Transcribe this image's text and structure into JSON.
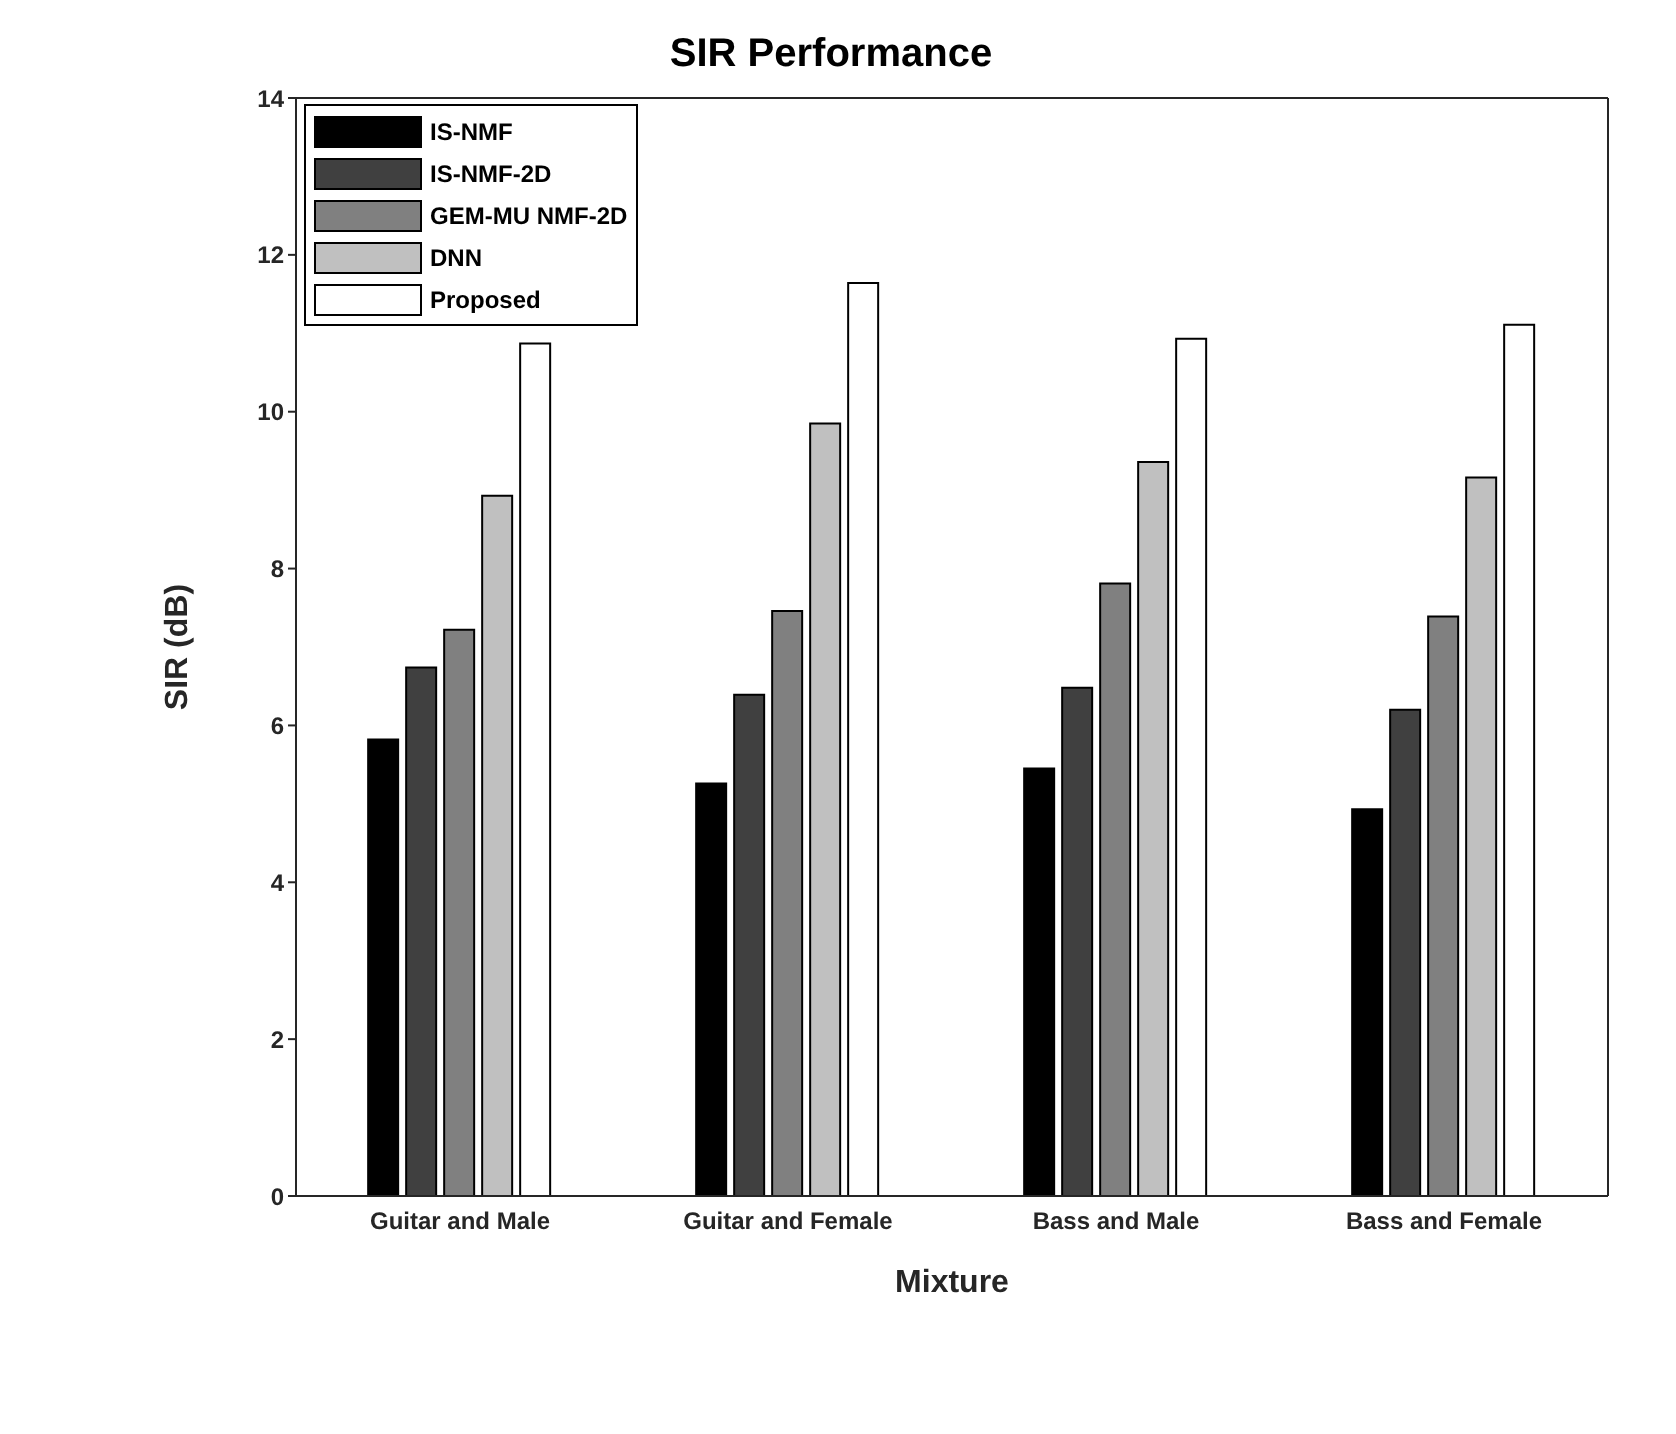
{
  "chart_data": {
    "type": "bar",
    "title": "SIR Performance",
    "xlabel": "Mixture",
    "ylabel": "SIR (dB)",
    "categories": [
      "Guitar and Male",
      "Guitar and Female",
      "Bass and Male",
      "Bass and Female"
    ],
    "series": [
      {
        "name": "IS-NMF",
        "color": "#000000",
        "values": [
          5.82,
          5.26,
          5.45,
          4.93
        ]
      },
      {
        "name": "IS-NMF-2D",
        "color": "#404040",
        "values": [
          6.74,
          6.39,
          6.48,
          6.2
        ]
      },
      {
        "name": "GEM-MU NMF-2D",
        "color": "#808080",
        "values": [
          7.22,
          7.46,
          7.81,
          7.39
        ]
      },
      {
        "name": "DNN",
        "color": "#c0c0c0",
        "values": [
          8.93,
          9.85,
          9.36,
          9.16
        ]
      },
      {
        "name": "Proposed",
        "color": "#ffffff",
        "values": [
          10.87,
          11.64,
          10.93,
          11.11
        ]
      }
    ],
    "ylim": [
      0,
      14
    ],
    "yticks": [
      0,
      2,
      4,
      6,
      8,
      10,
      12,
      14
    ],
    "legend": "top left"
  }
}
